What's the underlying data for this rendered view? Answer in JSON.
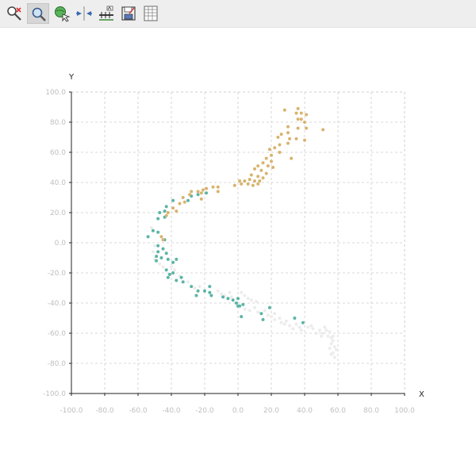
{
  "toolbar": {
    "tools": [
      {
        "name": "zoom-in-tool-button",
        "icon": "zoom-in-icon",
        "active": false
      },
      {
        "name": "zoom-tool-button",
        "icon": "magnifier-icon",
        "active": true
      },
      {
        "name": "pan-tool-button",
        "icon": "globe-pan-icon",
        "active": false
      },
      {
        "name": "fit-tool-button",
        "icon": "fit-arrows-icon",
        "active": false
      },
      {
        "name": "axis-tool-button",
        "icon": "axis-settings-icon",
        "active": false
      },
      {
        "name": "save-tool-button",
        "icon": "save-icon",
        "active": false
      },
      {
        "name": "table-tool-button",
        "icon": "table-icon",
        "active": false
      }
    ]
  },
  "colors": {
    "orange": "#d9b36e",
    "teal": "#5bb5a5",
    "gray": "#ececec",
    "grid": "#cccccc",
    "axis": "#222222"
  },
  "chart_data": {
    "type": "scatter",
    "xlabel": "X",
    "ylabel": "Y",
    "xlim": [
      -100,
      100
    ],
    "ylim": [
      -100,
      100
    ],
    "xticks": [
      "-100.0",
      "-80.0",
      "-60.0",
      "-40.0",
      "-20.0",
      "0.0",
      "20.0",
      "40.0",
      "60.0",
      "80.0",
      "100.0"
    ],
    "yticks": [
      "100.0",
      "80.0",
      "60.0",
      "40.0",
      "20.0",
      "0.0",
      "-20.0",
      "-40.0",
      "-60.0",
      "-80.0",
      "-100.0"
    ],
    "grid": true,
    "series": [
      {
        "color": "#d9b36e",
        "points": [
          [
            28,
            88
          ],
          [
            36,
            89
          ],
          [
            35,
            86
          ],
          [
            38,
            86
          ],
          [
            41,
            85
          ],
          [
            38,
            82
          ],
          [
            40,
            80
          ],
          [
            36,
            82
          ],
          [
            30,
            77
          ],
          [
            41,
            76
          ],
          [
            36,
            76
          ],
          [
            51,
            75
          ],
          [
            30,
            73
          ],
          [
            26,
            72
          ],
          [
            24,
            70
          ],
          [
            31,
            69
          ],
          [
            35,
            69
          ],
          [
            40,
            68
          ],
          [
            30,
            66
          ],
          [
            25,
            65
          ],
          [
            22,
            63
          ],
          [
            19,
            62
          ],
          [
            25,
            60
          ],
          [
            20,
            58
          ],
          [
            17,
            56
          ],
          [
            32,
            56
          ],
          [
            20,
            54
          ],
          [
            15,
            53
          ],
          [
            18,
            51
          ],
          [
            12,
            51
          ],
          [
            21,
            50
          ],
          [
            10,
            49
          ],
          [
            14,
            48
          ],
          [
            17,
            46
          ],
          [
            8,
            45
          ],
          [
            12,
            44
          ],
          [
            15,
            43
          ],
          [
            7,
            42
          ],
          [
            10,
            41
          ],
          [
            13,
            41
          ],
          [
            4,
            41
          ],
          [
            1,
            41
          ],
          [
            6,
            39
          ],
          [
            9,
            38
          ],
          [
            2,
            39
          ],
          [
            -2,
            38
          ],
          [
            12,
            39
          ],
          [
            -12,
            37
          ],
          [
            -15,
            37
          ],
          [
            -19,
            36
          ],
          [
            -21,
            35
          ],
          [
            -24,
            34
          ],
          [
            -28,
            34
          ],
          [
            -12,
            34
          ],
          [
            -22,
            33
          ],
          [
            -29,
            32
          ],
          [
            -33,
            30
          ],
          [
            -22,
            29
          ],
          [
            -32,
            27
          ],
          [
            -35,
            26
          ],
          [
            -39,
            23
          ],
          [
            -42,
            20
          ],
          [
            -37,
            21
          ],
          [
            -43,
            18
          ],
          [
            -45,
            2
          ],
          [
            -46,
            4
          ]
        ]
      },
      {
        "color": "#5bb5a5",
        "points": [
          [
            -39,
            28
          ],
          [
            -28,
            31
          ],
          [
            -24,
            32
          ],
          [
            -19,
            33
          ],
          [
            -30,
            28
          ],
          [
            -43,
            24
          ],
          [
            -47,
            20
          ],
          [
            -44,
            21
          ],
          [
            -48,
            16
          ],
          [
            -44,
            17
          ],
          [
            -51,
            8
          ],
          [
            -48,
            7
          ],
          [
            -54,
            4
          ],
          [
            -44,
            2
          ],
          [
            -48,
            -2
          ],
          [
            -45,
            -4
          ],
          [
            -48,
            -6
          ],
          [
            -43,
            -7
          ],
          [
            -49,
            -9
          ],
          [
            -46,
            -10
          ],
          [
            -42,
            -11
          ],
          [
            -37,
            -11
          ],
          [
            -49,
            -12
          ],
          [
            -39,
            -13
          ],
          [
            -43,
            -18
          ],
          [
            -39,
            -20
          ],
          [
            -41,
            -21
          ],
          [
            -42,
            -23
          ],
          [
            -34,
            -23
          ],
          [
            -37,
            -25
          ],
          [
            -33,
            -26
          ],
          [
            -28,
            -29
          ],
          [
            -17,
            -29
          ],
          [
            -24,
            -32
          ],
          [
            -20,
            -32
          ],
          [
            -17,
            -33
          ],
          [
            -25,
            -35
          ],
          [
            -16,
            -35
          ],
          [
            -9,
            -36
          ],
          [
            -6,
            -37
          ],
          [
            -3,
            -38
          ],
          [
            0,
            -37
          ],
          [
            -1,
            -40
          ],
          [
            0,
            -42
          ],
          [
            1,
            -42
          ],
          [
            3,
            -41
          ],
          [
            19,
            -43
          ],
          [
            14,
            -47
          ],
          [
            2,
            -49
          ],
          [
            15,
            -51
          ],
          [
            34,
            -50
          ],
          [
            39,
            -53
          ]
        ]
      },
      {
        "color": "#ececec",
        "points": [
          [
            -52,
            10
          ],
          [
            -50,
            -2
          ],
          [
            -51,
            -6
          ],
          [
            -50,
            -11
          ],
          [
            -47,
            -14
          ],
          [
            -45,
            -16
          ],
          [
            -40,
            -16
          ],
          [
            -38,
            -18
          ],
          [
            -35,
            -22
          ],
          [
            -30,
            -26
          ],
          [
            -26,
            -30
          ],
          [
            -23,
            -29
          ],
          [
            -12,
            -32
          ],
          [
            -10,
            -34
          ],
          [
            -8,
            -35
          ],
          [
            -5,
            -33
          ],
          [
            -4,
            -36
          ],
          [
            2,
            -33
          ],
          [
            4,
            -35
          ],
          [
            6,
            -37
          ],
          [
            8,
            -38
          ],
          [
            11,
            -39
          ],
          [
            4,
            -44
          ],
          [
            7,
            -45
          ],
          [
            10,
            -43
          ],
          [
            12,
            -46
          ],
          [
            16,
            -45
          ],
          [
            18,
            -48
          ],
          [
            20,
            -49
          ],
          [
            22,
            -51
          ],
          [
            22,
            -47
          ],
          [
            25,
            -50
          ],
          [
            26,
            -53
          ],
          [
            29,
            -52
          ],
          [
            28,
            -54
          ],
          [
            31,
            -55
          ],
          [
            33,
            -57
          ],
          [
            35,
            -54
          ],
          [
            37,
            -56
          ],
          [
            38,
            -58
          ],
          [
            42,
            -56
          ],
          [
            44,
            -55
          ],
          [
            45,
            -57
          ],
          [
            47,
            -60
          ],
          [
            49,
            -58
          ],
          [
            50,
            -62
          ],
          [
            51,
            -60
          ],
          [
            53,
            -58
          ],
          [
            54,
            -62
          ],
          [
            55,
            -59
          ],
          [
            56,
            -63
          ],
          [
            57,
            -65
          ],
          [
            56,
            -67
          ],
          [
            58,
            -69
          ],
          [
            59,
            -71
          ],
          [
            55,
            -70
          ],
          [
            57,
            -73
          ],
          [
            58,
            -76
          ],
          [
            56,
            -74
          ],
          [
            57,
            -62
          ],
          [
            52,
            -56
          ]
        ]
      }
    ]
  }
}
